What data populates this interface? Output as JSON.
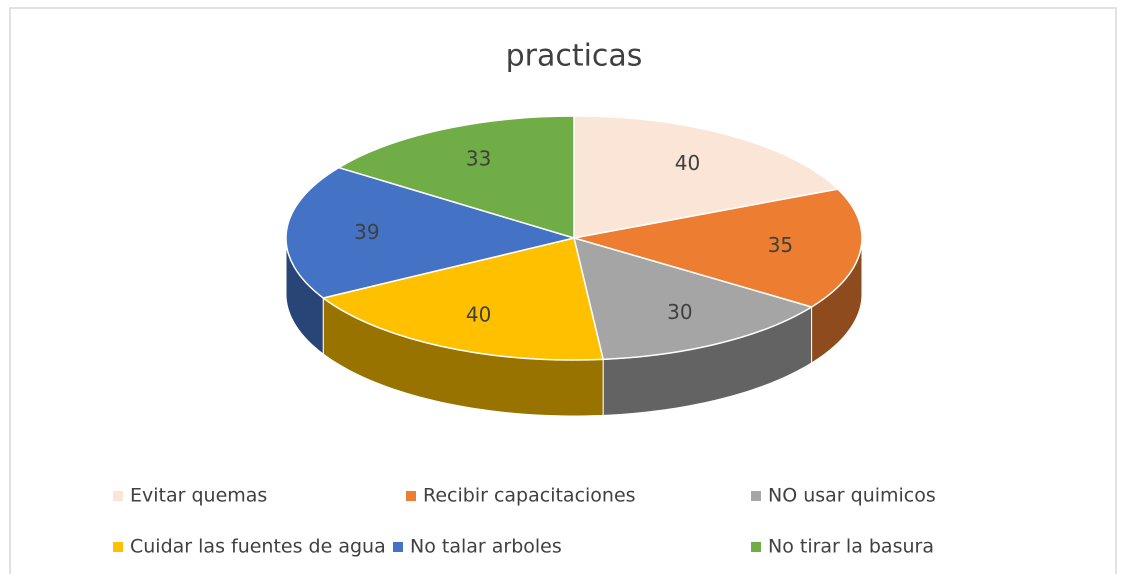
{
  "chart_data": {
    "type": "pie",
    "title": "practicas",
    "categories": [
      "Evitar quemas",
      "Recibir capacitaciones",
      "NO usar quimicos",
      "Cuidar las fuentes de agua",
      "No talar arboles",
      "No tirar la basura"
    ],
    "values": [
      40,
      35,
      30,
      40,
      39,
      33
    ],
    "colors": [
      "#fbe5d6",
      "#ed7d31",
      "#a5a5a5",
      "#ffc000",
      "#4472c4",
      "#70ad47"
    ],
    "legend": "bottom"
  }
}
